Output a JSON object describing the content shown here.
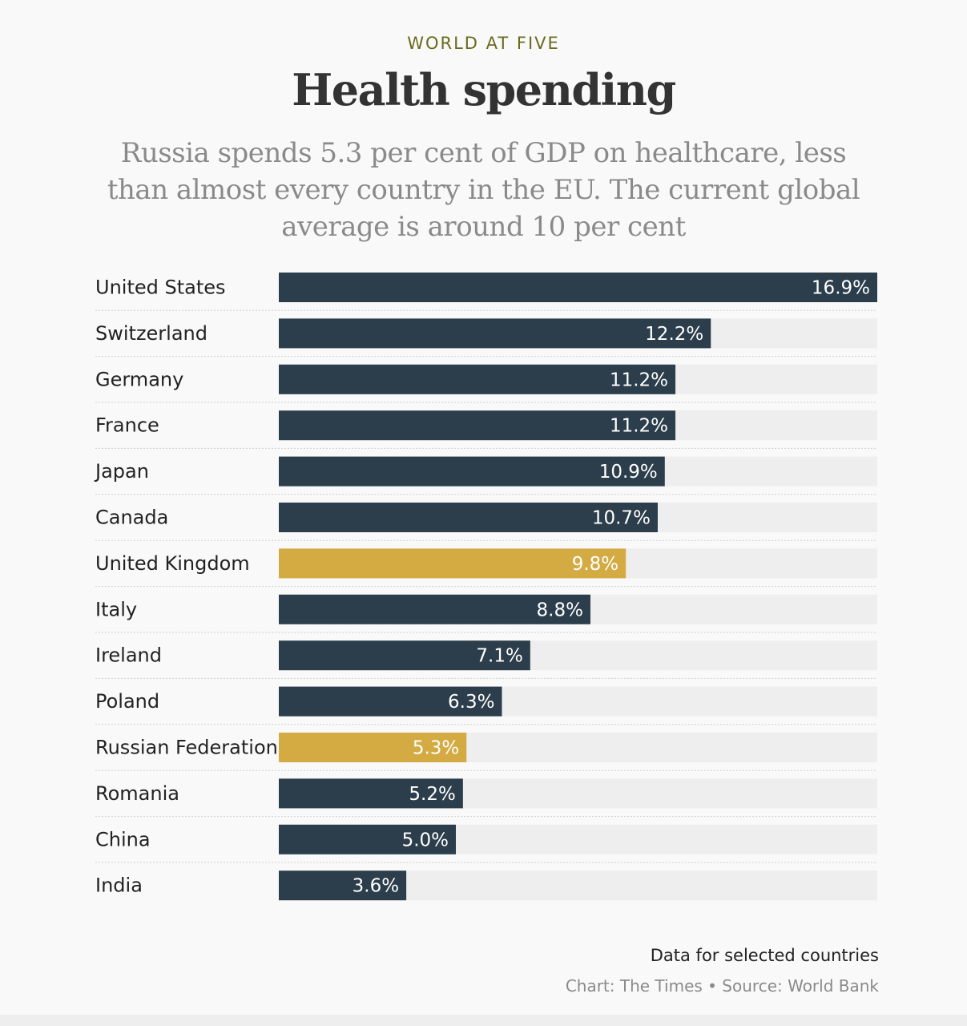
{
  "header": {
    "kicker": "WORLD AT FIVE",
    "title": "Health spending",
    "subtitle": "Russia spends 5.3 per cent of GDP on healthcare, less than almost every country in the EU. The current global average is around 10 per cent"
  },
  "chart_data": {
    "type": "bar",
    "orientation": "horizontal",
    "unit": "%",
    "categories": [
      "United States",
      "Switzerland",
      "Germany",
      "France",
      "Japan",
      "Canada",
      "United Kingdom",
      "Italy",
      "Ireland",
      "Poland",
      "Russian Federation",
      "Romania",
      "China",
      "India"
    ],
    "values": [
      16.9,
      12.2,
      11.2,
      11.2,
      10.9,
      10.7,
      9.8,
      8.8,
      7.1,
      6.3,
      5.3,
      5.2,
      5.0,
      3.6
    ],
    "value_labels": [
      "16.9%",
      "12.2%",
      "11.2%",
      "11.2%",
      "10.9%",
      "10.7%",
      "9.8%",
      "8.8%",
      "7.1%",
      "6.3%",
      "5.3%",
      "5.2%",
      "5.0%",
      "3.6%"
    ],
    "highlighted": [
      "United Kingdom",
      "Russian Federation"
    ],
    "xlim": [
      0,
      16.9
    ],
    "colors": {
      "default": "#2c3e4c",
      "highlight": "#d4aa43",
      "track": "#eeeeee",
      "divider": "#cfcfcf"
    }
  },
  "footer": {
    "note": "Data for selected countries",
    "source": "Chart: The Times • Source: World Bank"
  }
}
